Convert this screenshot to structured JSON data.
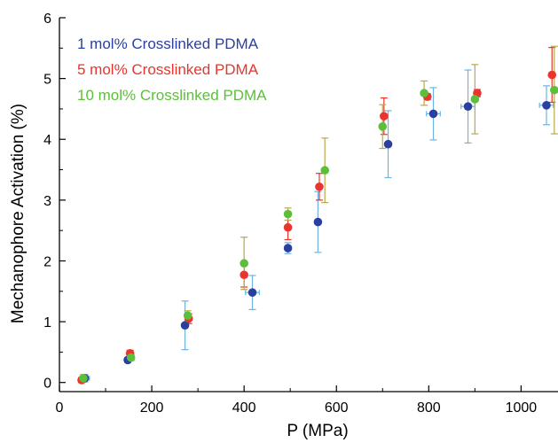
{
  "chart_data": {
    "type": "scatter",
    "title": "",
    "xlabel": "P (MPa)",
    "ylabel": "Mechanophore Activation (%)",
    "xlim": [
      0,
      1080
    ],
    "ylim": [
      -0.15,
      6
    ],
    "xticks": [
      0,
      200,
      400,
      600,
      800,
      1000
    ],
    "yticks": [
      0,
      1,
      2,
      3,
      4,
      5,
      6
    ],
    "grid": false,
    "legend_position": "top-left",
    "series": [
      {
        "name": "1 mol% Crosslinked PDMA",
        "color": "#2b3f9e",
        "errorbar_color": "#6fb3e0",
        "points": [
          {
            "x": 55,
            "y": 0.07,
            "yerr": 0.06,
            "xerr": 10
          },
          {
            "x": 148,
            "y": 0.37,
            "yerr": 0.04,
            "xerr": 5
          },
          {
            "x": 272,
            "y": 0.94,
            "yerr": 0.4,
            "xerr": 5
          },
          {
            "x": 418,
            "y": 1.48,
            "yerr": 0.28,
            "xerr": 15
          },
          {
            "x": 495,
            "y": 2.21,
            "yerr": 0.09,
            "xerr": 5
          },
          {
            "x": 560,
            "y": 2.64,
            "yerr": 0.5,
            "xerr": 5
          },
          {
            "x": 712,
            "y": 3.92,
            "yerr": 0.55,
            "xerr": 5
          },
          {
            "x": 810,
            "y": 4.42,
            "yerr": 0.43,
            "xerr": 15
          },
          {
            "x": 885,
            "y": 4.54,
            "yerr": 0.6,
            "xerr": 15
          },
          {
            "x": 1055,
            "y": 4.56,
            "yerr": 0.32,
            "xerr": 15
          }
        ]
      },
      {
        "name": "5 mol% Crosslinked PDMA",
        "color": "#e8352e",
        "errorbar_color": "#e8352e",
        "points": [
          {
            "x": 48,
            "y": 0.04,
            "yerr": 0.04,
            "xerr": 5
          },
          {
            "x": 153,
            "y": 0.48,
            "yerr": 0.05,
            "xerr": 5
          },
          {
            "x": 280,
            "y": 1.05,
            "yerr": 0.08,
            "xerr": 5
          },
          {
            "x": 400,
            "y": 1.77,
            "yerr": 0.2,
            "xerr": 5
          },
          {
            "x": 495,
            "y": 2.55,
            "yerr": 0.2,
            "xerr": 5
          },
          {
            "x": 563,
            "y": 3.22,
            "yerr": 0.22,
            "xerr": 5
          },
          {
            "x": 703,
            "y": 4.38,
            "yerr": 0.3,
            "xerr": 5
          },
          {
            "x": 797,
            "y": 4.7,
            "yerr": 0.05,
            "xerr": 5
          },
          {
            "x": 905,
            "y": 4.76,
            "yerr": 0.06,
            "xerr": 5
          },
          {
            "x": 1067,
            "y": 5.06,
            "yerr": 0.45,
            "xerr": 5
          }
        ]
      },
      {
        "name": "10 mol% Crosslinked PDMA",
        "color": "#5cbf3a",
        "errorbar_color": "#b8a94a",
        "points": [
          {
            "x": 52,
            "y": 0.07,
            "yerr": 0.06,
            "xerr": 5
          },
          {
            "x": 155,
            "y": 0.41,
            "yerr": 0.05,
            "xerr": 5
          },
          {
            "x": 278,
            "y": 1.1,
            "yerr": 0.08,
            "xerr": 5
          },
          {
            "x": 400,
            "y": 1.96,
            "yerr": 0.43,
            "xerr": 5
          },
          {
            "x": 495,
            "y": 2.77,
            "yerr": 0.1,
            "xerr": 5
          },
          {
            "x": 575,
            "y": 3.49,
            "yerr": 0.53,
            "xerr": 5
          },
          {
            "x": 700,
            "y": 4.21,
            "yerr": 0.36,
            "xerr": 5
          },
          {
            "x": 790,
            "y": 4.76,
            "yerr": 0.2,
            "xerr": 5
          },
          {
            "x": 900,
            "y": 4.66,
            "yerr": 0.57,
            "xerr": 5
          },
          {
            "x": 1072,
            "y": 4.81,
            "yerr": 0.72,
            "xerr": 5
          }
        ]
      }
    ]
  }
}
